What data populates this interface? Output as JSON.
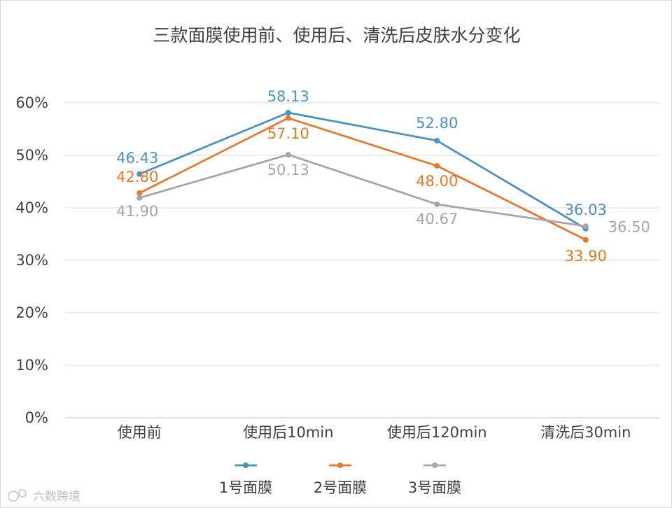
{
  "chart_data": {
    "type": "line",
    "title": "三款面膜使用前、使用后、清洗后皮肤水分变化",
    "categories": [
      "使用前",
      "使用后10min",
      "使用后120min",
      "清洗后30min"
    ],
    "ylim": [
      0,
      60
    ],
    "yticks": [
      "0%",
      "10%",
      "20%",
      "30%",
      "40%",
      "50%",
      "60%"
    ],
    "grid": true,
    "legend_position": "bottom",
    "series": [
      {
        "name": "1号面膜",
        "color": "#4a90c2",
        "values": [
          46.43,
          58.13,
          52.8,
          36.03
        ],
        "labels": [
          "46.43",
          "58.13",
          "52.80",
          "36.03"
        ]
      },
      {
        "name": "2号面膜",
        "color": "#e5782a",
        "values": [
          42.8,
          57.1,
          48.0,
          33.9
        ],
        "labels": [
          "42.80",
          "57.10",
          "48.00",
          "33.90"
        ]
      },
      {
        "name": "3号面膜",
        "color": "#a5a5a5",
        "values": [
          41.9,
          50.13,
          40.67,
          36.5
        ],
        "labels": [
          "41.90",
          "50.13",
          "40.67",
          "36.50"
        ]
      }
    ]
  },
  "watermark": "六数跨境"
}
